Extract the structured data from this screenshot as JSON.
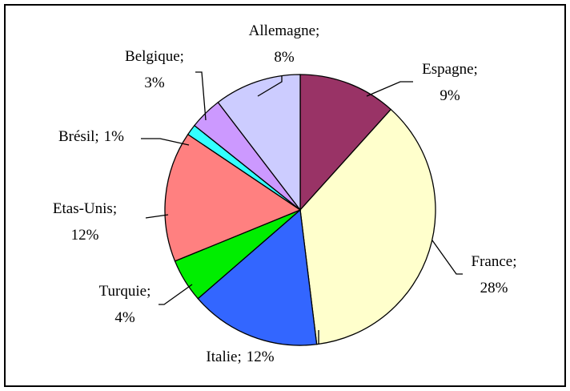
{
  "chart_data": {
    "type": "pie",
    "categories": [
      "Espagne;",
      "France;",
      "Italie;",
      "Turquie;",
      "Etas-Unis;",
      "Brésil;",
      "Belgique;",
      "Allemagne;"
    ],
    "values": [
      9,
      28,
      12,
      4,
      12,
      1,
      3,
      8
    ],
    "value_labels": [
      "9%",
      "28%",
      "12%",
      "4%",
      "12%",
      "1%",
      "3%",
      "8%"
    ],
    "colors": [
      "#993366",
      "#ffffcc",
      "#3366ff",
      "#00ee00",
      "#ff8080",
      "#33ffff",
      "#cc99ff",
      "#ccccff"
    ]
  }
}
